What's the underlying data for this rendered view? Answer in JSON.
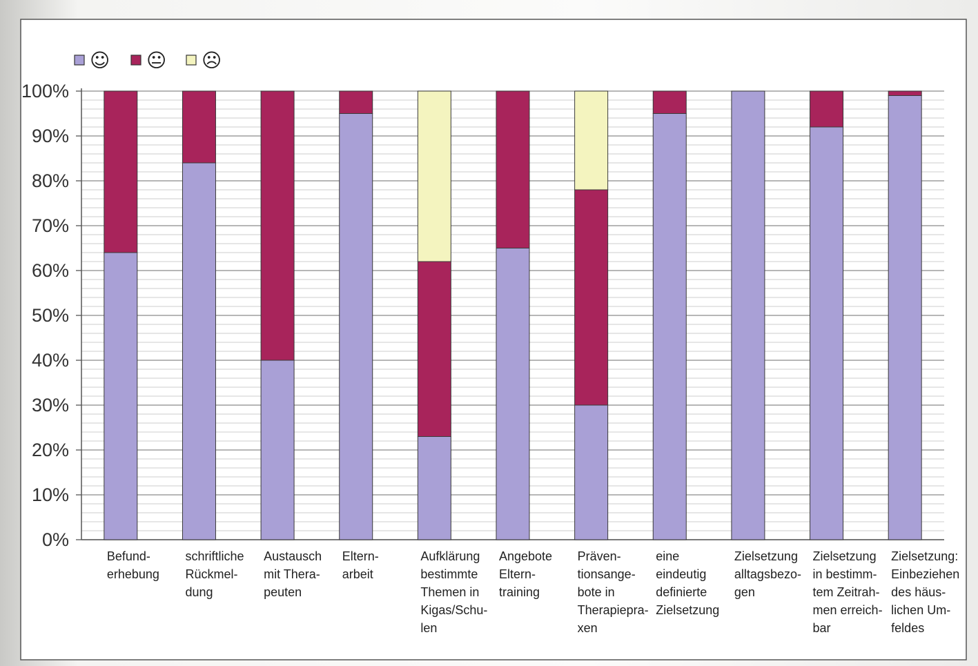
{
  "chart_data": {
    "type": "bar",
    "stacked": true,
    "orientation": "vertical",
    "categories": [
      [
        "Befund-",
        "erhebung"
      ],
      [
        "schriftliche",
        "Rückmel-",
        "dung"
      ],
      [
        "Austausch",
        "mit Thera-",
        "peuten"
      ],
      [
        "Eltern-",
        "arbeit"
      ],
      [
        "Aufklärung",
        "bestimmte",
        "Themen in",
        "Kigas/Schu-",
        "len"
      ],
      [
        "Angebote",
        "Eltern-",
        "training"
      ],
      [
        "Präven-",
        "tionsange-",
        "bote in",
        "Therapiepra-",
        "xen"
      ],
      [
        "eine",
        "eindeutig",
        "definierte",
        "Zielsetzung"
      ],
      [
        "Zielsetzung",
        "alltagsbezo-",
        "gen"
      ],
      [
        "Zielsetzung",
        "in bestimm-",
        "tem Zeitrah-",
        "men erreich-",
        "bar"
      ],
      [
        "Zielsetzung:",
        "Einbeziehen",
        "des häus-",
        "lichen Um-",
        "feldes"
      ]
    ],
    "series": [
      {
        "legend_symbol": "☺",
        "color": "#a9a0d6",
        "values": [
          64,
          84,
          40,
          95,
          23,
          65,
          30,
          95,
          100,
          92,
          99
        ]
      },
      {
        "legend_symbol": "😐",
        "color": "#a8245b",
        "values": [
          36,
          16,
          60,
          5,
          39,
          35,
          48,
          5,
          0,
          8,
          1
        ]
      },
      {
        "legend_symbol": "☹",
        "color": "#f4f4bf",
        "values": [
          0,
          0,
          0,
          0,
          38,
          0,
          22,
          0,
          0,
          0,
          0
        ]
      }
    ],
    "y_ticks": [
      "0%",
      "10%",
      "20%",
      "30%",
      "40%",
      "50%",
      "60%",
      "70%",
      "80%",
      "90%",
      "100%"
    ],
    "ylim": [
      0,
      100
    ],
    "grid": true,
    "legend_position": "top-left",
    "title": "",
    "xlabel": "",
    "ylabel": ""
  }
}
